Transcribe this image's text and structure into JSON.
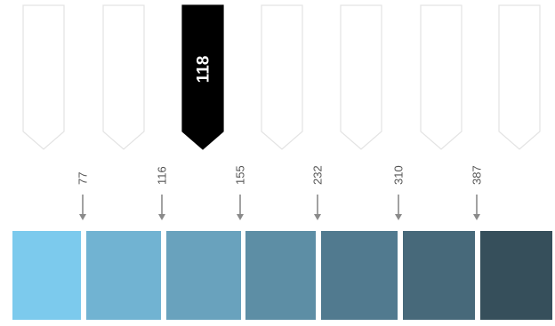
{
  "tags": [
    {
      "active": false,
      "label": ""
    },
    {
      "active": false,
      "label": ""
    },
    {
      "active": true,
      "label": "118"
    },
    {
      "active": false,
      "label": ""
    },
    {
      "active": false,
      "label": ""
    },
    {
      "active": false,
      "label": ""
    },
    {
      "active": false,
      "label": ""
    }
  ],
  "markers": [
    "77",
    "116",
    "155",
    "232",
    "310",
    "387"
  ],
  "swatches": [
    {
      "color": "#7ccaed"
    },
    {
      "color": "#71b3d2"
    },
    {
      "color": "#69a2bd"
    },
    {
      "color": "#5d8ea5"
    },
    {
      "color": "#517a8f"
    },
    {
      "color": "#47697a"
    },
    {
      "color": "#364f5b"
    }
  ],
  "colors": {
    "tag_outline": "#e3e3e3",
    "tag_active": "#000000",
    "arrow": "#8a8a8a"
  }
}
